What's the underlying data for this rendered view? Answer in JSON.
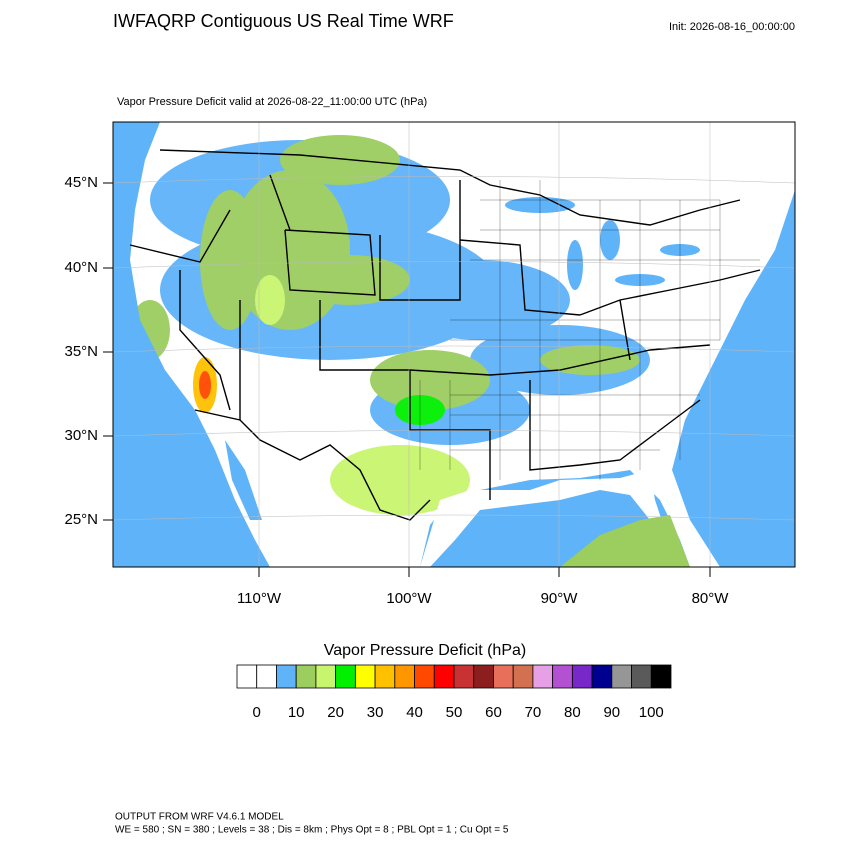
{
  "header": {
    "title": "IWFAQRP Contiguous US Real Time WRF",
    "init": "Init: 2026-08-16_00:00:00"
  },
  "map": {
    "subtitle": "Vapor Pressure Deficit valid at 2026-08-22_11:00:00 UTC   (hPa)",
    "lat_labels": [
      "45°N",
      "40°N",
      "35°N",
      "30°N",
      "25°N"
    ],
    "lon_labels": [
      "110°W",
      "100°W",
      "90°W",
      "80°W"
    ]
  },
  "colorbar": {
    "title": "Vapor Pressure Deficit  (hPa)",
    "colors": [
      "#ffffff",
      "#ffffff",
      "#5fb3f9",
      "#9bcd5f",
      "#c8f56e",
      "#00f000",
      "#ffff00",
      "#ffc000",
      "#ff9600",
      "#ff4800",
      "#ff0000",
      "#c83232",
      "#8c1e1e",
      "#e8705a",
      "#d27050",
      "#e6a0e6",
      "#b450d2",
      "#7828c8",
      "#000090",
      "#969696",
      "#5a5a5a",
      "#000000"
    ],
    "labels": [
      0,
      10,
      20,
      30,
      40,
      50,
      60,
      70,
      80,
      90,
      100
    ]
  },
  "footer": {
    "lines": [
      "OUTPUT FROM WRF V4.6.1 MODEL",
      "WE = 580 ; SN = 380 ; Levels = 38 ; Dis = 8km ; Phys Opt = 8 ; PBL Opt = 1 ; Cu Opt = 5"
    ]
  }
}
